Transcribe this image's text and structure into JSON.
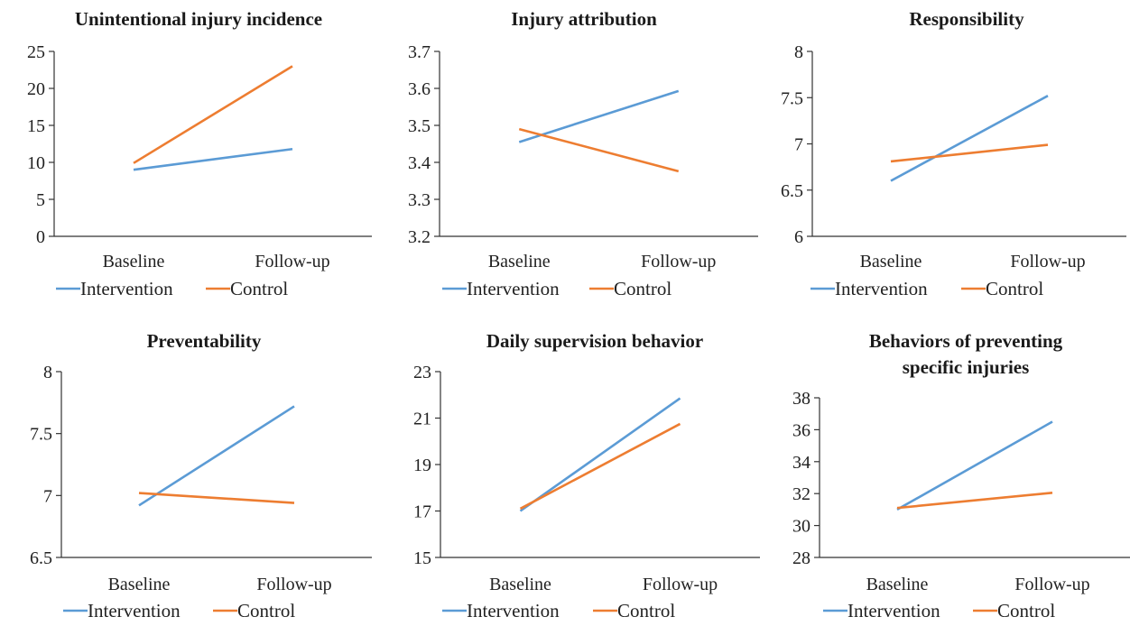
{
  "chart_data": [
    {
      "type": "line",
      "title_lines": [
        "Unintentional injury incidence"
      ],
      "categories": [
        "Baseline",
        "Follow-up"
      ],
      "ylim": [
        0,
        25
      ],
      "yticks": [
        "0",
        "5",
        "10",
        "15",
        "20",
        "25"
      ],
      "series": [
        {
          "name": "Intervention",
          "color": "#5B9BD5",
          "values": [
            9.0,
            11.8
          ]
        },
        {
          "name": "Control",
          "color": "#ED7D31",
          "values": [
            9.9,
            23.0
          ]
        }
      ],
      "legend_position": "bottom"
    },
    {
      "type": "line",
      "title_lines": [
        "Injury attribution"
      ],
      "categories": [
        "Baseline",
        "Follow-up"
      ],
      "ylim": [
        3.2,
        3.7
      ],
      "yticks": [
        "3.2",
        "3.3",
        "3.4",
        "3.5",
        "3.6",
        "3.7"
      ],
      "series": [
        {
          "name": "Intervention",
          "color": "#5B9BD5",
          "values": [
            3.455,
            3.593
          ]
        },
        {
          "name": "Control",
          "color": "#ED7D31",
          "values": [
            3.49,
            3.376
          ]
        }
      ],
      "legend_position": "bottom"
    },
    {
      "type": "line",
      "title_lines": [
        "Responsibility"
      ],
      "categories": [
        "Baseline",
        "Follow-up"
      ],
      "ylim": [
        6,
        8
      ],
      "yticks": [
        "6",
        "6.5",
        "7",
        "7.5",
        "8"
      ],
      "series": [
        {
          "name": "Intervention",
          "color": "#5B9BD5",
          "values": [
            6.6,
            7.52
          ]
        },
        {
          "name": "Control",
          "color": "#ED7D31",
          "values": [
            6.81,
            6.99
          ]
        }
      ],
      "legend_position": "bottom"
    },
    {
      "type": "line",
      "title_lines": [
        "Preventability"
      ],
      "categories": [
        "Baseline",
        "Follow-up"
      ],
      "ylim": [
        6.5,
        8
      ],
      "yticks": [
        "6.5",
        "7",
        "7.5",
        "8"
      ],
      "series": [
        {
          "name": "Intervention",
          "color": "#5B9BD5",
          "values": [
            6.92,
            7.72
          ]
        },
        {
          "name": "Control",
          "color": "#ED7D31",
          "values": [
            7.02,
            6.94
          ]
        }
      ],
      "legend_position": "bottom"
    },
    {
      "type": "line",
      "title_lines": [
        "Daily supervision behavior"
      ],
      "categories": [
        "Baseline",
        "Follow-up"
      ],
      "ylim": [
        15,
        23
      ],
      "yticks": [
        "15",
        "17",
        "19",
        "21",
        "23"
      ],
      "series": [
        {
          "name": "Intervention",
          "color": "#5B9BD5",
          "values": [
            17.0,
            21.85
          ]
        },
        {
          "name": "Control",
          "color": "#ED7D31",
          "values": [
            17.1,
            20.75
          ]
        }
      ],
      "legend_position": "bottom"
    },
    {
      "type": "line",
      "title_lines": [
        "Behaviors of preventing",
        "specific injuries"
      ],
      "categories": [
        "Baseline",
        "Follow-up"
      ],
      "ylim": [
        28,
        38
      ],
      "yticks": [
        "28",
        "30",
        "32",
        "34",
        "36",
        "38"
      ],
      "series": [
        {
          "name": "Intervention",
          "color": "#5B9BD5",
          "values": [
            31.0,
            36.5
          ]
        },
        {
          "name": "Control",
          "color": "#ED7D31",
          "values": [
            31.1,
            32.05
          ]
        }
      ],
      "legend_position": "bottom"
    }
  ]
}
